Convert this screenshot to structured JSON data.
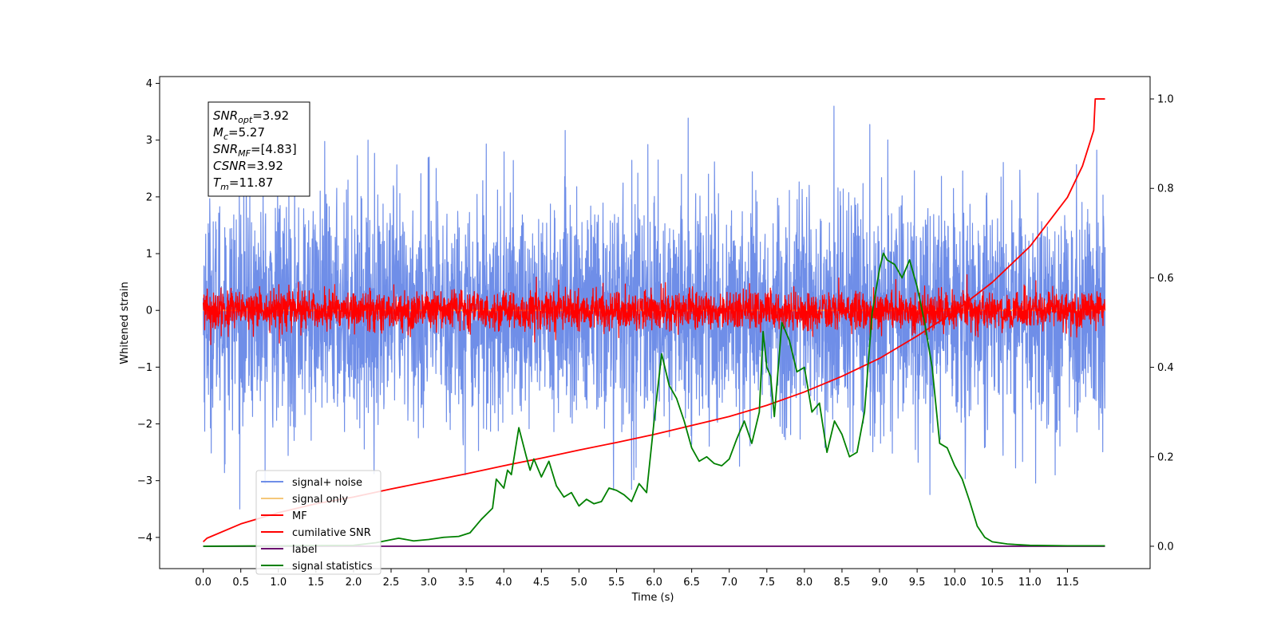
{
  "chart_data": {
    "type": "line",
    "title": "",
    "xlabel": "Time (s)",
    "ylabel": "Whitened strain",
    "xlim": [
      -0.58,
      12.6
    ],
    "ylim_left": [
      -4.55,
      4.12
    ],
    "ylim_right": [
      -0.05,
      1.05
    ],
    "xticks": [
      "0.0",
      "0.5",
      "1.0",
      "1.5",
      "2.0",
      "2.5",
      "3.0",
      "3.5",
      "4.0",
      "4.5",
      "5.0",
      "5.5",
      "6.0",
      "6.5",
      "7.0",
      "7.5",
      "8.0",
      "8.5",
      "9.0",
      "9.5",
      "10.0",
      "10.5",
      "11.0",
      "11.5"
    ],
    "yticks_left": [
      "4",
      "3",
      "2",
      "1",
      "0",
      "−1",
      "−2",
      "−3",
      "−4"
    ],
    "yticks_right": [
      "0.0",
      "0.2",
      "0.4",
      "0.6",
      "0.8",
      "1.0"
    ],
    "grid": false,
    "legend_position": "lower-left",
    "series": [
      {
        "name": "signal+ noise",
        "color": "#6f8ee8",
        "axis": "left",
        "kind": "noise",
        "std": 1.0,
        "x_range": [
          0,
          12.0
        ]
      },
      {
        "name": "signal only",
        "color": "#f5c77a",
        "axis": "left",
        "kind": "flat",
        "y": 0.0,
        "x_range": [
          0,
          12.0
        ]
      },
      {
        "name": "MF",
        "color": "#ff0000",
        "axis": "left",
        "kind": "noise",
        "std": 0.17,
        "x_range": [
          0,
          12.0
        ]
      },
      {
        "name": "cumilative SNR",
        "color": "#ff0000",
        "axis": "right",
        "x": [
          0.0,
          0.05,
          0.5,
          1.0,
          1.5,
          2.0,
          2.5,
          3.0,
          3.5,
          4.0,
          4.5,
          5.0,
          5.5,
          6.0,
          6.5,
          7.0,
          7.5,
          8.0,
          8.5,
          9.0,
          9.5,
          10.0,
          10.5,
          11.0,
          11.5,
          11.7,
          11.85,
          11.87,
          12.0
        ],
        "y": [
          0.01,
          0.018,
          0.05,
          0.075,
          0.095,
          0.11,
          0.128,
          0.145,
          0.162,
          0.18,
          0.197,
          0.215,
          0.232,
          0.25,
          0.27,
          0.29,
          0.315,
          0.345,
          0.38,
          0.42,
          0.47,
          0.525,
          0.59,
          0.67,
          0.78,
          0.85,
          0.93,
          1.0,
          1.0
        ]
      },
      {
        "name": "label",
        "color": "#6a0d6f",
        "axis": "right",
        "x": [
          0.0,
          12.0
        ],
        "y": [
          0.0,
          0.0
        ]
      },
      {
        "name": "signal statistics",
        "color": "#008000",
        "axis": "right",
        "x": [
          0.0,
          1.0,
          2.0,
          2.3,
          2.6,
          2.8,
          3.0,
          3.2,
          3.4,
          3.55,
          3.7,
          3.85,
          3.9,
          4.0,
          4.05,
          4.1,
          4.2,
          4.3,
          4.35,
          4.4,
          4.5,
          4.6,
          4.7,
          4.8,
          4.9,
          5.0,
          5.1,
          5.2,
          5.3,
          5.4,
          5.5,
          5.6,
          5.7,
          5.8,
          5.9,
          6.0,
          6.1,
          6.2,
          6.3,
          6.4,
          6.5,
          6.6,
          6.7,
          6.8,
          6.9,
          7.0,
          7.1,
          7.2,
          7.3,
          7.4,
          7.45,
          7.5,
          7.55,
          7.6,
          7.7,
          7.8,
          7.9,
          8.0,
          8.1,
          8.2,
          8.3,
          8.4,
          8.5,
          8.6,
          8.7,
          8.8,
          8.9,
          9.0,
          9.05,
          9.1,
          9.2,
          9.3,
          9.4,
          9.5,
          9.6,
          9.7,
          9.8,
          9.9,
          10.0,
          10.1,
          10.2,
          10.3,
          10.4,
          10.5,
          10.7,
          11.0,
          11.5,
          12.0
        ],
        "y": [
          0.0,
          0.001,
          0.002,
          0.008,
          0.018,
          0.012,
          0.015,
          0.02,
          0.022,
          0.03,
          0.06,
          0.085,
          0.15,
          0.13,
          0.17,
          0.16,
          0.265,
          0.2,
          0.17,
          0.195,
          0.155,
          0.19,
          0.135,
          0.11,
          0.12,
          0.09,
          0.105,
          0.095,
          0.1,
          0.13,
          0.125,
          0.115,
          0.1,
          0.14,
          0.12,
          0.28,
          0.43,
          0.36,
          0.33,
          0.28,
          0.22,
          0.19,
          0.2,
          0.185,
          0.18,
          0.195,
          0.24,
          0.28,
          0.23,
          0.3,
          0.48,
          0.4,
          0.38,
          0.29,
          0.5,
          0.46,
          0.39,
          0.4,
          0.3,
          0.32,
          0.21,
          0.28,
          0.25,
          0.2,
          0.21,
          0.3,
          0.52,
          0.62,
          0.655,
          0.64,
          0.63,
          0.6,
          0.64,
          0.58,
          0.5,
          0.4,
          0.23,
          0.22,
          0.18,
          0.15,
          0.1,
          0.045,
          0.02,
          0.01,
          0.005,
          0.002,
          0.001,
          0.001
        ]
      }
    ],
    "annotation": {
      "lines": [
        {
          "sym": "SNR",
          "sub": "opt",
          "value": "=3.92"
        },
        {
          "sym": "M",
          "sub": "c",
          "value": "=5.27"
        },
        {
          "sym": "SNR",
          "sub": "MF",
          "value": "=[4.83]"
        },
        {
          "sym": "CSNR",
          "sub": "",
          "value": "=3.92"
        },
        {
          "sym": "T",
          "sub": "m",
          "value": "=11.87"
        }
      ]
    }
  }
}
